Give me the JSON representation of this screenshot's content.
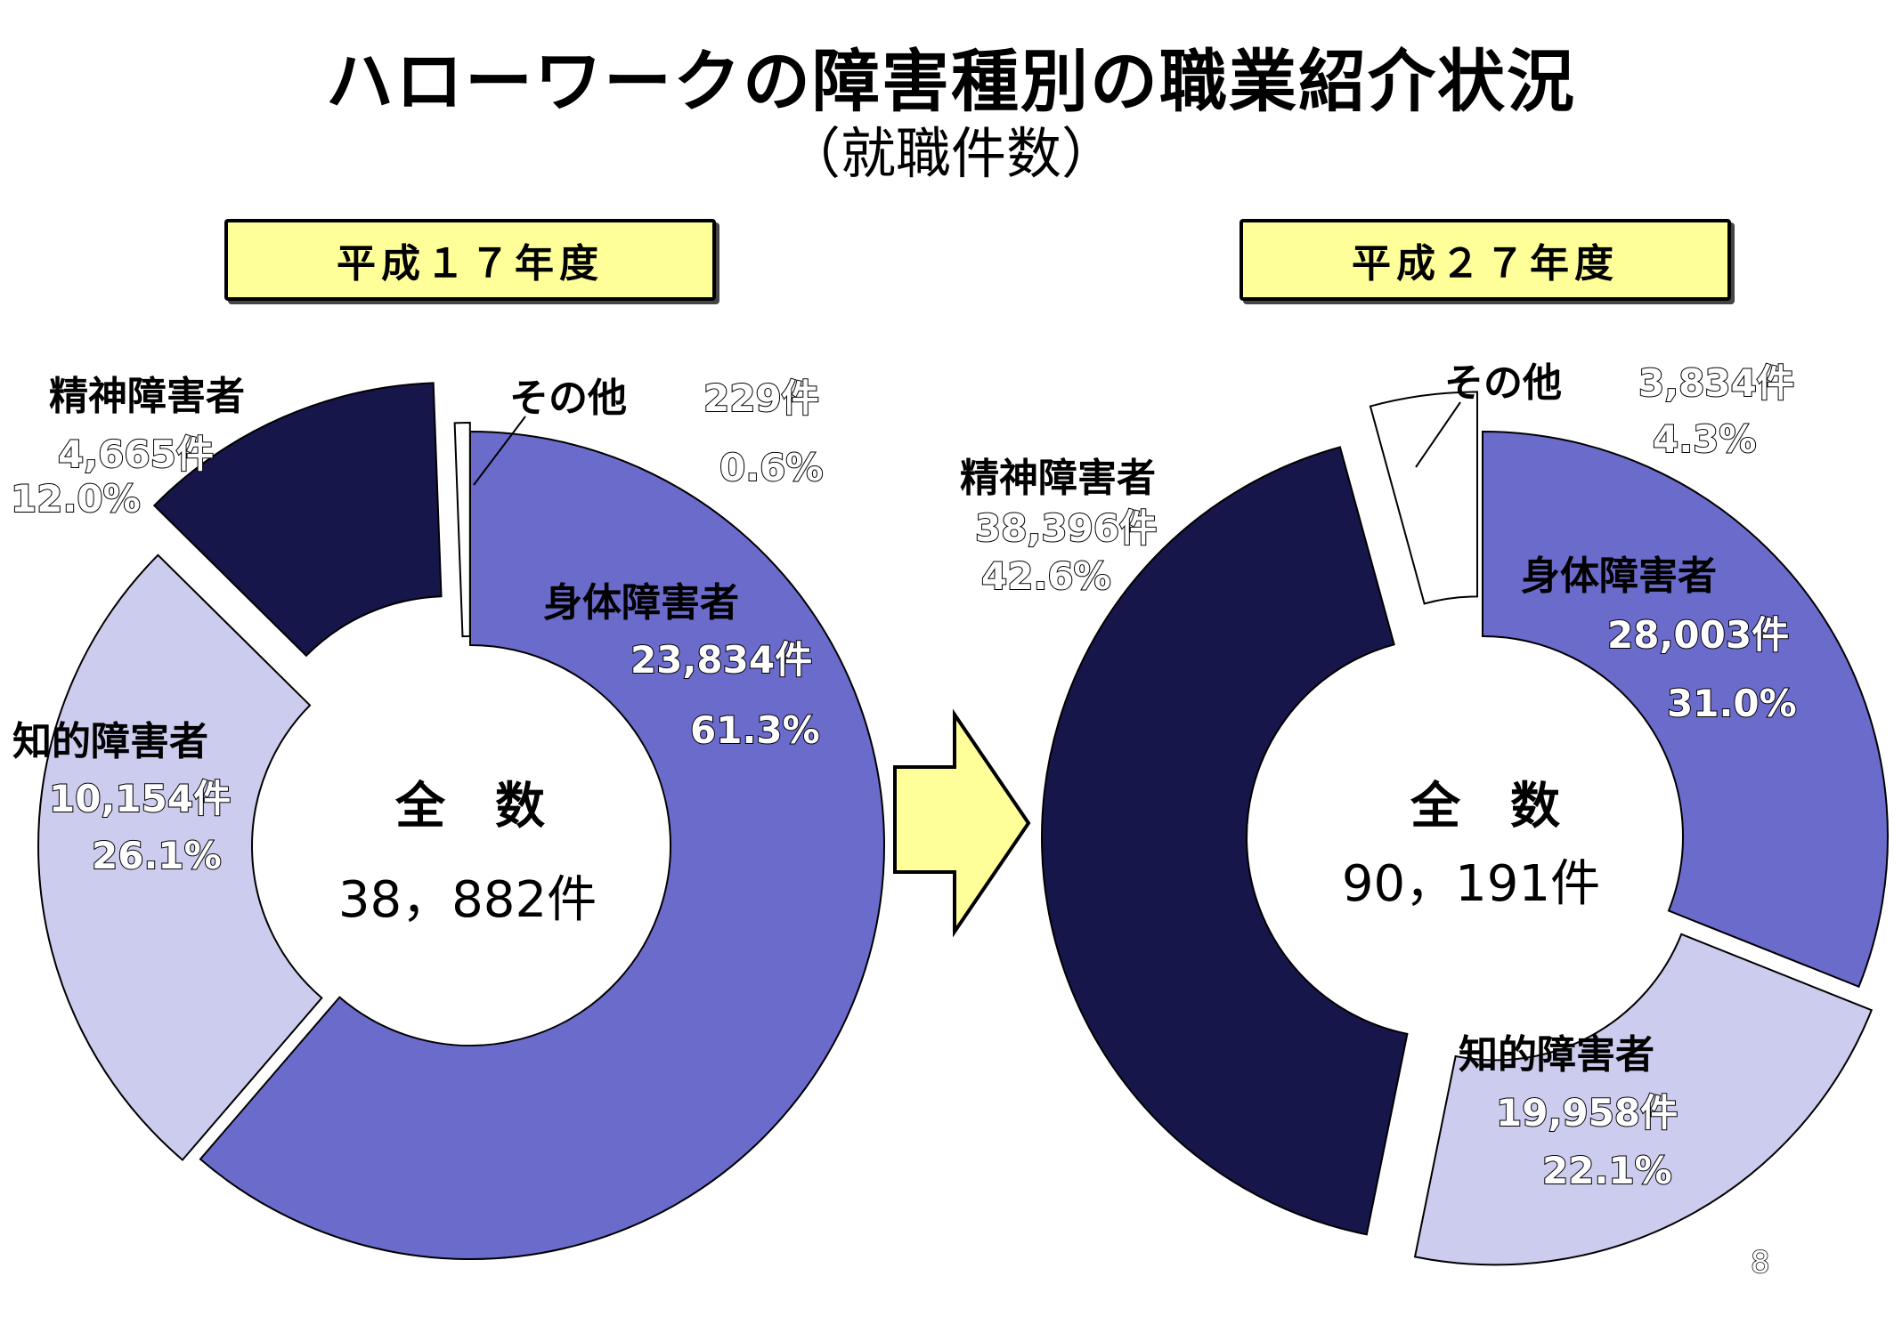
{
  "title": "ハローワークの障害種別の職業紹介状況",
  "subtitle": "（就職件数）",
  "page_number": "8",
  "colors": {
    "physical": "#6b6bcc",
    "intellectual": "#ccccee",
    "mental": "#16164a",
    "other": "#ffffff",
    "year_box": "#ffff99",
    "arrow": "#ffff99"
  },
  "chart_data": [
    {
      "type": "pie",
      "variant": "donut-exploded",
      "year_label": "平成１７年度",
      "center_label": "全　数",
      "center_value": "38，882件",
      "total": 38882,
      "slices": [
        {
          "key": "physical",
          "name": "身体障害者",
          "count": 23834,
          "count_label": "23,834件",
          "percent": 61.3,
          "percent_label": "61.3%"
        },
        {
          "key": "intellectual",
          "name": "知的障害者",
          "count": 10154,
          "count_label": "10,154件",
          "percent": 26.1,
          "percent_label": "26.1%"
        },
        {
          "key": "mental",
          "name": "精神障害者",
          "count": 4665,
          "count_label": "4,665件",
          "percent": 12.0,
          "percent_label": "12.0%"
        },
        {
          "key": "other",
          "name": "その他",
          "count": 229,
          "count_label": "229件",
          "percent": 0.6,
          "percent_label": "0.6%"
        }
      ]
    },
    {
      "type": "pie",
      "variant": "donut-exploded",
      "year_label": "平成２７年度",
      "center_label": "全　数",
      "center_value": "90，191件",
      "total": 90191,
      "slices": [
        {
          "key": "physical",
          "name": "身体障害者",
          "count": 28003,
          "count_label": "28,003件",
          "percent": 31.0,
          "percent_label": "31.0%"
        },
        {
          "key": "intellectual",
          "name": "知的障害者",
          "count": 19958,
          "count_label": "19,958件",
          "percent": 22.1,
          "percent_label": "22.1%"
        },
        {
          "key": "mental",
          "name": "精神障害者",
          "count": 38396,
          "count_label": "38,396件",
          "percent": 42.6,
          "percent_label": "42.6%"
        },
        {
          "key": "other",
          "name": "その他",
          "count": 3834,
          "count_label": "3,834件",
          "percent": 4.3,
          "percent_label": "4.3%"
        }
      ]
    }
  ]
}
